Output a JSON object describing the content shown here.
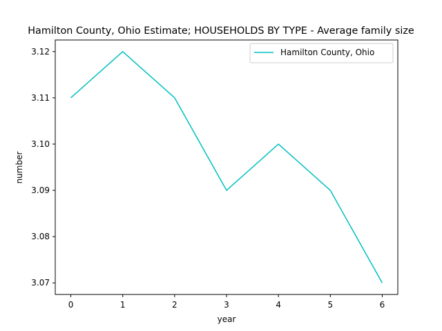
{
  "chart_data": {
    "type": "line",
    "title": "Hamilton County, Ohio Estimate; HOUSEHOLDS BY TYPE - Average family size",
    "xlabel": "year",
    "ylabel": "number",
    "x": [
      0,
      1,
      2,
      3,
      4,
      5,
      6
    ],
    "x_ticks": [
      "0",
      "1",
      "2",
      "3",
      "4",
      "5",
      "6"
    ],
    "y_ticks": [
      "3.07",
      "3.08",
      "3.09",
      "3.10",
      "3.11",
      "3.12"
    ],
    "ylim": [
      3.0675,
      3.1225
    ],
    "xlim": [
      -0.3,
      6.3
    ],
    "grid": false,
    "legend_position": "top-right",
    "series": [
      {
        "name": "Hamilton County, Ohio",
        "color": "#00bfbf",
        "values": [
          3.11,
          3.12,
          3.11,
          3.09,
          3.1,
          3.09,
          3.07
        ]
      }
    ]
  }
}
